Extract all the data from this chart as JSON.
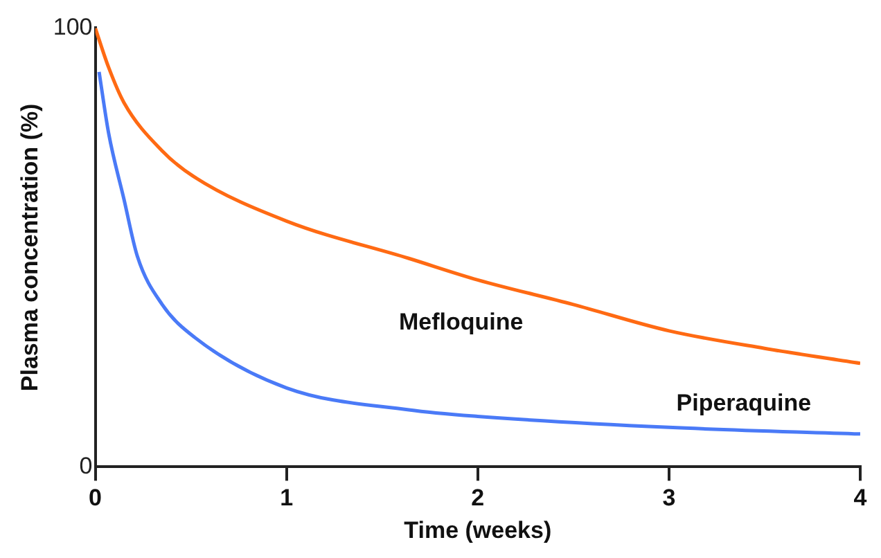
{
  "chart_data": {
    "type": "line",
    "xlabel": "Time (weeks)",
    "ylabel": "Plasma concentration (%)",
    "xlim": [
      0,
      4
    ],
    "xticks": [
      0,
      1,
      2,
      3,
      4
    ],
    "ylim": [
      0,
      100
    ],
    "yticks": [
      0,
      100
    ],
    "grid": false,
    "legend": false,
    "marker": "none",
    "line_style": "solid",
    "series": [
      {
        "name": "Mefloquine",
        "color": "#ff6a13",
        "x": [
          0,
          0.07,
          0.15,
          0.35,
          0.52,
          1,
          1.64,
          2,
          2.5,
          3,
          3.5,
          4
        ],
        "values": [
          100,
          91,
          83,
          72,
          66,
          56,
          47.5,
          42.6,
          37,
          31,
          27,
          23.6
        ]
      },
      {
        "name": "Piperaquine",
        "color": "#4a7af7",
        "x": [
          0.02,
          0.07,
          0.15,
          0.22,
          0.35,
          0.52,
          1,
          1.64,
          2,
          3,
          4
        ],
        "values": [
          90,
          76,
          61,
          48,
          37,
          29.5,
          18,
          13,
          11.5,
          9,
          7.5
        ]
      }
    ]
  }
}
